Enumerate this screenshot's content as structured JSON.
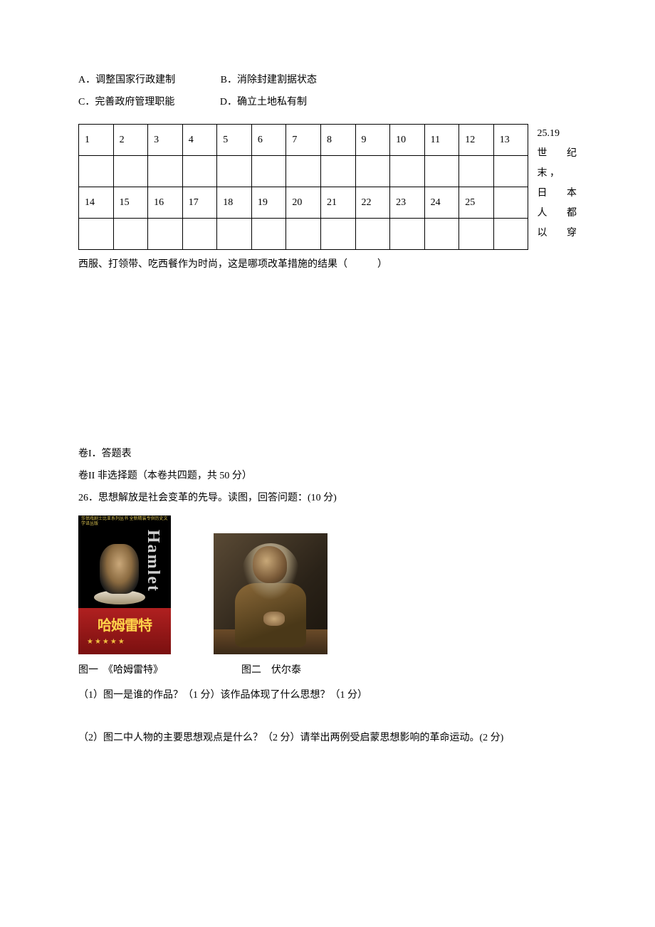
{
  "options_top": {
    "A": "A．调整国家行政建制",
    "B": "B．消除封建割据状态",
    "C": "C．完善政府管理职能",
    "D": "D．确立土地私有制"
  },
  "answer_table": {
    "row1": [
      "1",
      "2",
      "3",
      "4",
      "5",
      "6",
      "7",
      "8",
      "9",
      "10",
      "11",
      "12",
      "13"
    ],
    "row2": [
      "",
      "",
      "",
      "",
      "",
      "",
      "",
      "",
      "",
      "",
      "",
      "",
      ""
    ],
    "row3": [
      "14",
      "15",
      "16",
      "17",
      "18",
      "19",
      "20",
      "21",
      "22",
      "23",
      "24",
      "25",
      ""
    ],
    "row4": [
      "",
      "",
      "",
      "",
      "",
      "",
      "",
      "",
      "",
      "",
      "",
      "",
      ""
    ]
  },
  "side_text": {
    "line1": "25.19",
    "line2_a": "世",
    "line2_b": "纪",
    "line3": "末 ，",
    "line4_a": "日",
    "line4_b": "本",
    "line5_a": "人",
    "line5_b": "都",
    "line6_a": "以",
    "line6_b": "穿"
  },
  "q25_cont": "西服、打领带、吃西餐作为时尚，这是哪项改革措施的结果（　　　）",
  "section1_label": "卷I．答题表",
  "section2_label": "卷II 非选择题（本卷共四题，共 50 分）",
  "q26_stem": "26．思想解放是社会变革的先导。读图，回答问题：(10 分)",
  "cover1": {
    "title": "哈姆雷特",
    "side": "Hamlet",
    "dots": "★★★★★",
    "top": "莎翁戏剧士比亚系列丛书  全新精装专供历史文学译丛版"
  },
  "caption1": "图一　《哈姆雷特》",
  "caption2": "图二　伏尔泰",
  "q26_1": "（1）图一是谁的作品？（1 分）该作品体现了什么思想？（1 分）",
  "q26_2": "（2）图二中人物的主要思想观点是什么？（2 分）请举出两例受启蒙思想影响的革命运动。(2 分)"
}
